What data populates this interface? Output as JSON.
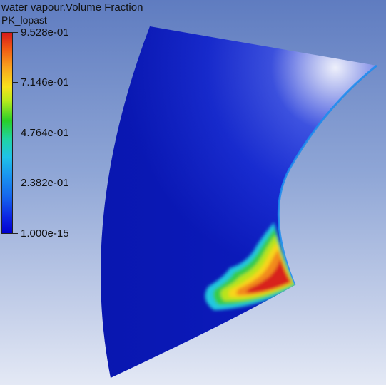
{
  "title": {
    "variable": "water vapour.Volume Fraction",
    "location": "PK_lopast"
  },
  "legend": {
    "labels": [
      "9.528e-01",
      "7.146e-01",
      "4.764e-01",
      "2.382e-01",
      "1.000e-15"
    ],
    "colors": [
      "#d71a1a",
      "#f05a14",
      "#f9a11e",
      "#f7e21c",
      "#b6ea1c",
      "#28cf28",
      "#1fd4a3",
      "#1fc2e8",
      "#1996f0",
      "#1565ee",
      "#0c25e3",
      "#0000d0"
    ]
  },
  "colors": {
    "background_top": "#5f7cc0",
    "background_bottom": "#e4e9f5",
    "blade_dark": "#0e1fc8",
    "blade_highlight": "#e6e9f8"
  }
}
